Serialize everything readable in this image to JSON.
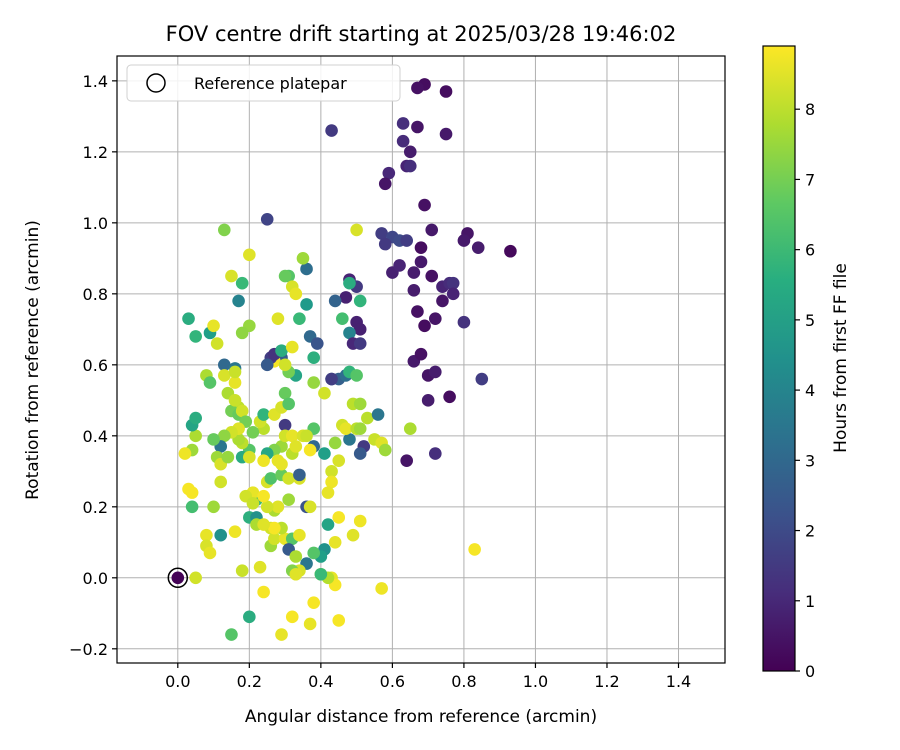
{
  "chart_data": {
    "type": "scatter",
    "title": "FOV centre drift starting at 2025/03/28 19:46:02",
    "xlabel": "Angular distance from reference (arcmin)",
    "ylabel": "Rotation from reference (arcmin)",
    "xlim": [
      -0.17,
      1.53
    ],
    "ylim": [
      -0.24,
      1.47
    ],
    "xticks": [
      "0.0",
      "0.2",
      "0.4",
      "0.6",
      "0.8",
      "1.0",
      "1.2",
      "1.4"
    ],
    "xtick_values": [
      0.0,
      0.2,
      0.4,
      0.6,
      0.8,
      1.0,
      1.2,
      1.4
    ],
    "yticks": [
      "−0.2",
      "0.0",
      "0.2",
      "0.4",
      "0.6",
      "0.8",
      "1.0",
      "1.2",
      "1.4"
    ],
    "ytick_values": [
      -0.2,
      0.0,
      0.2,
      0.4,
      0.6,
      0.8,
      1.0,
      1.2,
      1.4
    ],
    "grid": true,
    "legend": {
      "position": "top-left",
      "entries": [
        "Reference platepar"
      ]
    },
    "colorbar": {
      "label": "Hours from first FF file",
      "colormap": "viridis",
      "range": [
        0,
        8.9
      ],
      "ticks": [
        "0",
        "1",
        "2",
        "3",
        "4",
        "5",
        "6",
        "7",
        "8"
      ],
      "tick_values": [
        0,
        1,
        2,
        3,
        4,
        5,
        6,
        7,
        8
      ]
    },
    "reference_point": {
      "x": 0.0,
      "y": 0.0
    },
    "points": [
      [
        0.0,
        0.0,
        0.05
      ],
      [
        0.69,
        1.39,
        0.3
      ],
      [
        0.67,
        1.38,
        0.4
      ],
      [
        0.75,
        1.37,
        0.3
      ],
      [
        0.63,
        1.28,
        1.2
      ],
      [
        0.67,
        1.27,
        0.5
      ],
      [
        0.43,
        1.26,
        1.5
      ],
      [
        0.75,
        1.25,
        0.6
      ],
      [
        0.63,
        1.23,
        1.1
      ],
      [
        0.65,
        1.2,
        0.7
      ],
      [
        0.64,
        1.16,
        0.9
      ],
      [
        0.65,
        1.16,
        1.2
      ],
      [
        0.59,
        1.14,
        1.0
      ],
      [
        0.58,
        1.11,
        0.5
      ],
      [
        0.69,
        1.05,
        0.4
      ],
      [
        0.25,
        1.01,
        1.8
      ],
      [
        0.57,
        0.97,
        1.6
      ],
      [
        0.6,
        0.96,
        1.9
      ],
      [
        0.62,
        0.95,
        2.0
      ],
      [
        0.64,
        0.95,
        1.6
      ],
      [
        0.71,
        0.98,
        0.6
      ],
      [
        0.81,
        0.97,
        0.5
      ],
      [
        0.8,
        0.95,
        0.6
      ],
      [
        0.84,
        0.93,
        0.7
      ],
      [
        0.93,
        0.92,
        0.2
      ],
      [
        0.68,
        0.93,
        0.3
      ],
      [
        0.58,
        0.94,
        1.5
      ],
      [
        0.6,
        0.86,
        0.8
      ],
      [
        0.62,
        0.88,
        0.9
      ],
      [
        0.66,
        0.86,
        0.7
      ],
      [
        0.68,
        0.89,
        0.6
      ],
      [
        0.71,
        0.85,
        0.4
      ],
      [
        0.74,
        0.82,
        0.9
      ],
      [
        0.76,
        0.83,
        1.1
      ],
      [
        0.77,
        0.83,
        1.3
      ],
      [
        0.77,
        0.8,
        0.9
      ],
      [
        0.74,
        0.78,
        0.5
      ],
      [
        0.66,
        0.81,
        0.7
      ],
      [
        0.67,
        0.75,
        0.4
      ],
      [
        0.69,
        0.71,
        0.3
      ],
      [
        0.72,
        0.73,
        0.5
      ],
      [
        0.8,
        0.72,
        1.3
      ],
      [
        0.66,
        0.61,
        0.6
      ],
      [
        0.68,
        0.63,
        0.4
      ],
      [
        0.7,
        0.57,
        0.5
      ],
      [
        0.72,
        0.58,
        0.7
      ],
      [
        0.76,
        0.51,
        0.3
      ],
      [
        0.85,
        0.56,
        1.6
      ],
      [
        0.7,
        0.5,
        0.7
      ],
      [
        0.64,
        0.33,
        0.5
      ],
      [
        0.72,
        0.35,
        1.2
      ],
      [
        0.5,
        0.82,
        1.5
      ],
      [
        0.48,
        0.84,
        0.9
      ],
      [
        0.47,
        0.79,
        0.8
      ],
      [
        0.5,
        0.72,
        0.8
      ],
      [
        0.51,
        0.7,
        0.8
      ],
      [
        0.48,
        0.69,
        4.0
      ],
      [
        0.49,
        0.66,
        1.0
      ],
      [
        0.51,
        0.66,
        1.5
      ],
      [
        0.43,
        0.56,
        3.0
      ],
      [
        0.45,
        0.56,
        2.7
      ],
      [
        0.47,
        0.57,
        3.2
      ],
      [
        0.48,
        0.58,
        5.8
      ],
      [
        0.5,
        0.57,
        6.5
      ],
      [
        0.36,
        0.87,
        3.2
      ],
      [
        0.36,
        0.77,
        4.8
      ],
      [
        0.34,
        0.73,
        6.0
      ],
      [
        0.37,
        0.68,
        3.0
      ],
      [
        0.39,
        0.66,
        2.3
      ],
      [
        0.38,
        0.62,
        5.6
      ],
      [
        0.44,
        0.78,
        2.8
      ],
      [
        0.46,
        0.73,
        6.2
      ],
      [
        0.48,
        0.83,
        5.5
      ],
      [
        0.51,
        0.78,
        5.8
      ],
      [
        0.38,
        0.55,
        7.5
      ],
      [
        0.41,
        0.52,
        8.3
      ],
      [
        0.43,
        0.56,
        1.6
      ],
      [
        0.38,
        0.42,
        6.5
      ],
      [
        0.38,
        0.37,
        3.0
      ],
      [
        0.41,
        0.35,
        5.0
      ],
      [
        0.44,
        0.38,
        7.5
      ],
      [
        0.48,
        0.39,
        3.5
      ],
      [
        0.49,
        0.49,
        8.0
      ],
      [
        0.51,
        0.49,
        7.6
      ],
      [
        0.53,
        0.45,
        8.0
      ],
      [
        0.55,
        0.39,
        8.2
      ],
      [
        0.57,
        0.38,
        8.5
      ],
      [
        0.58,
        0.36,
        7.6
      ],
      [
        0.56,
        0.46,
        3.5
      ],
      [
        0.65,
        0.42,
        7.8
      ],
      [
        0.52,
        0.37,
        1.5
      ],
      [
        0.51,
        0.35,
        2.5
      ],
      [
        0.46,
        0.43,
        8.3
      ],
      [
        0.47,
        0.42,
        8.6
      ],
      [
        0.5,
        0.42,
        8.0
      ],
      [
        0.51,
        0.42,
        7.6
      ],
      [
        0.43,
        0.3,
        8.3
      ],
      [
        0.45,
        0.33,
        8.4
      ],
      [
        0.43,
        0.27,
        8.7
      ],
      [
        0.42,
        0.24,
        8.6
      ],
      [
        0.45,
        0.17,
        8.8
      ],
      [
        0.44,
        0.1,
        8.6
      ],
      [
        0.5,
        0.98,
        8.4
      ],
      [
        0.51,
        0.16,
        8.7
      ],
      [
        0.49,
        0.12,
        8.5
      ],
      [
        0.42,
        0.15,
        5.2
      ],
      [
        0.41,
        0.08,
        4.5
      ],
      [
        0.4,
        0.06,
        5.0
      ],
      [
        0.4,
        0.01,
        8.3
      ],
      [
        0.43,
        0.0,
        8.6
      ],
      [
        0.44,
        -0.02,
        8.8
      ],
      [
        0.38,
        -0.07,
        8.8
      ],
      [
        0.37,
        -0.13,
        8.6
      ],
      [
        0.45,
        -0.12,
        8.8
      ],
      [
        0.57,
        -0.03,
        8.7
      ],
      [
        0.83,
        0.08,
        8.8
      ],
      [
        0.32,
        -0.11,
        8.8
      ],
      [
        0.29,
        -0.16,
        8.6
      ],
      [
        0.24,
        -0.04,
        8.8
      ],
      [
        0.2,
        -0.11,
        5.5
      ],
      [
        0.15,
        -0.16,
        6.5
      ],
      [
        0.18,
        0.02,
        8.2
      ],
      [
        0.23,
        0.03,
        8.5
      ],
      [
        0.26,
        0.09,
        7.6
      ],
      [
        0.27,
        0.11,
        8.3
      ],
      [
        0.3,
        0.11,
        8.6
      ],
      [
        0.32,
        0.11,
        6.5
      ],
      [
        0.31,
        0.08,
        2.5
      ],
      [
        0.33,
        0.06,
        7.8
      ],
      [
        0.36,
        0.04,
        3.5
      ],
      [
        0.34,
        0.02,
        8.4
      ],
      [
        0.32,
        0.02,
        7.2
      ],
      [
        0.33,
        0.01,
        8.5
      ],
      [
        0.38,
        0.07,
        6.5
      ],
      [
        0.34,
        0.12,
        8.6
      ],
      [
        0.31,
        0.22,
        7.6
      ],
      [
        0.29,
        0.14,
        8.0
      ],
      [
        0.26,
        0.14,
        8.3
      ],
      [
        0.27,
        0.14,
        8.8
      ],
      [
        0.27,
        0.19,
        7.8
      ],
      [
        0.28,
        0.2,
        8.5
      ],
      [
        0.25,
        0.2,
        8.3
      ],
      [
        0.2,
        0.17,
        5.6
      ],
      [
        0.22,
        0.22,
        6.0
      ],
      [
        0.21,
        0.24,
        8.6
      ],
      [
        0.19,
        0.23,
        8.3
      ],
      [
        0.21,
        0.21,
        8.2
      ],
      [
        0.24,
        0.23,
        8.8
      ],
      [
        0.25,
        0.27,
        8.4
      ],
      [
        0.26,
        0.28,
        6.4
      ],
      [
        0.29,
        0.29,
        6.8
      ],
      [
        0.31,
        0.28,
        8.3
      ],
      [
        0.34,
        0.28,
        8.4
      ],
      [
        0.36,
        0.2,
        2.3
      ],
      [
        0.37,
        0.2,
        8.4
      ],
      [
        0.34,
        0.29,
        2.7
      ],
      [
        0.32,
        0.35,
        8.0
      ],
      [
        0.29,
        0.37,
        7.6
      ],
      [
        0.27,
        0.36,
        7.2
      ],
      [
        0.25,
        0.35,
        5.3
      ],
      [
        0.24,
        0.33,
        8.7
      ],
      [
        0.28,
        0.33,
        8.6
      ],
      [
        0.29,
        0.32,
        8.6
      ],
      [
        0.24,
        0.42,
        8.0
      ],
      [
        0.21,
        0.41,
        7.0
      ],
      [
        0.23,
        0.44,
        8.3
      ],
      [
        0.24,
        0.46,
        5.8
      ],
      [
        0.27,
        0.46,
        8.5
      ],
      [
        0.29,
        0.48,
        8.4
      ],
      [
        0.3,
        0.52,
        6.8
      ],
      [
        0.31,
        0.49,
        6.5
      ],
      [
        0.3,
        0.43,
        1.5
      ],
      [
        0.3,
        0.4,
        8.3
      ],
      [
        0.32,
        0.4,
        8.6
      ],
      [
        0.33,
        0.37,
        8.5
      ],
      [
        0.35,
        0.4,
        8.4
      ],
      [
        0.36,
        0.4,
        8.2
      ],
      [
        0.37,
        0.36,
        8.8
      ],
      [
        0.33,
        0.57,
        5.2
      ],
      [
        0.31,
        0.58,
        7.0
      ],
      [
        0.29,
        0.62,
        2.6
      ],
      [
        0.27,
        0.61,
        8.8
      ],
      [
        0.26,
        0.62,
        1.6
      ],
      [
        0.25,
        0.6,
        2.5
      ],
      [
        0.27,
        0.63,
        1.3
      ],
      [
        0.29,
        0.64,
        5.5
      ],
      [
        0.3,
        0.6,
        8.3
      ],
      [
        0.32,
        0.65,
        8.6
      ],
      [
        0.28,
        0.73,
        8.5
      ],
      [
        0.31,
        0.85,
        6.5
      ],
      [
        0.3,
        0.85,
        6.8
      ],
      [
        0.32,
        0.82,
        8.4
      ],
      [
        0.35,
        0.9,
        7.6
      ],
      [
        0.33,
        0.8,
        8.6
      ],
      [
        0.2,
        0.91,
        8.5
      ],
      [
        0.18,
        0.83,
        6.0
      ],
      [
        0.2,
        0.71,
        7.5
      ],
      [
        0.18,
        0.69,
        7.4
      ],
      [
        0.17,
        0.78,
        4.0
      ],
      [
        0.13,
        0.98,
        7.2
      ],
      [
        0.15,
        0.85,
        8.4
      ],
      [
        0.03,
        0.73,
        5.5
      ],
      [
        0.05,
        0.68,
        5.8
      ],
      [
        0.09,
        0.69,
        5.0
      ],
      [
        0.1,
        0.71,
        8.6
      ],
      [
        0.11,
        0.66,
        8.3
      ],
      [
        0.13,
        0.6,
        3.0
      ],
      [
        0.16,
        0.59,
        3.5
      ],
      [
        0.13,
        0.57,
        8.4
      ],
      [
        0.08,
        0.57,
        7.8
      ],
      [
        0.09,
        0.55,
        6.5
      ],
      [
        0.14,
        0.52,
        7.8
      ],
      [
        0.16,
        0.55,
        8.6
      ],
      [
        0.16,
        0.58,
        8.2
      ],
      [
        0.17,
        0.48,
        8.0
      ],
      [
        0.15,
        0.47,
        7.0
      ],
      [
        0.16,
        0.5,
        8.2
      ],
      [
        0.17,
        0.46,
        6.8
      ],
      [
        0.18,
        0.47,
        8.3
      ],
      [
        0.19,
        0.44,
        7.0
      ],
      [
        0.2,
        0.36,
        6.5
      ],
      [
        0.18,
        0.38,
        8.0
      ],
      [
        0.17,
        0.39,
        7.8
      ],
      [
        0.17,
        0.42,
        8.5
      ],
      [
        0.15,
        0.41,
        8.3
      ],
      [
        0.13,
        0.4,
        7.4
      ],
      [
        0.12,
        0.37,
        3.5
      ],
      [
        0.11,
        0.34,
        7.6
      ],
      [
        0.12,
        0.32,
        8.4
      ],
      [
        0.14,
        0.34,
        7.5
      ],
      [
        0.18,
        0.34,
        5.4
      ],
      [
        0.2,
        0.34,
        8.4
      ],
      [
        0.1,
        0.39,
        6.8
      ],
      [
        0.05,
        0.4,
        7.8
      ],
      [
        0.04,
        0.36,
        7.6
      ],
      [
        0.04,
        0.43,
        5.2
      ],
      [
        0.05,
        0.45,
        5.5
      ],
      [
        0.02,
        0.35,
        8.7
      ],
      [
        0.03,
        0.25,
        8.8
      ],
      [
        0.04,
        0.24,
        8.8
      ],
      [
        0.04,
        0.2,
        6.2
      ],
      [
        0.1,
        0.2,
        7.6
      ],
      [
        0.12,
        0.27,
        8.3
      ],
      [
        0.12,
        0.12,
        4.5
      ],
      [
        0.16,
        0.13,
        8.7
      ],
      [
        0.08,
        0.12,
        8.6
      ],
      [
        0.08,
        0.09,
        8.4
      ],
      [
        0.09,
        0.07,
        8.6
      ],
      [
        0.05,
        0.0,
        8.3
      ],
      [
        0.22,
        0.17,
        4.5
      ],
      [
        0.22,
        0.15,
        7.8
      ],
      [
        0.24,
        0.15,
        8.5
      ],
      [
        0.42,
        0.0,
        7.9
      ],
      [
        0.4,
        0.01,
        6.0
      ]
    ]
  }
}
